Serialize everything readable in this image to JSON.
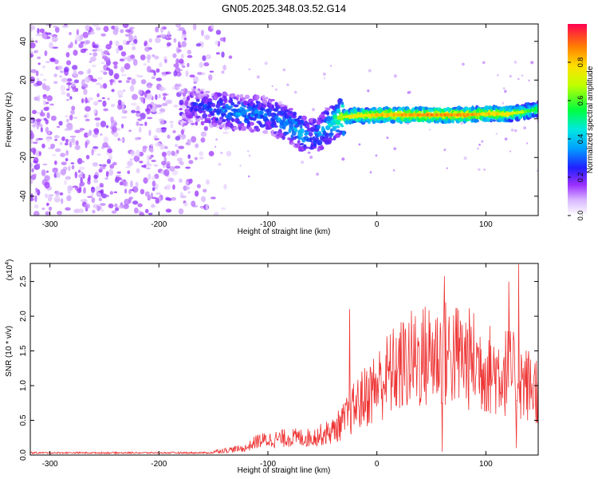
{
  "title": "GN05.2025.348.03.52.G14",
  "chart_data": [
    {
      "type": "heatmap",
      "xlabel": "Height of straight line (km)",
      "ylabel": "Frequency (Hz)",
      "xlim": [
        -318,
        148
      ],
      "ylim": [
        -50,
        49
      ],
      "x_ticks": [
        -300,
        -200,
        -100,
        0,
        100
      ],
      "y_ticks": [
        -40,
        -20,
        0,
        20,
        40
      ],
      "colorbar": {
        "label": "Normalized spectral amplitude",
        "range": [
          0,
          1
        ],
        "ticks": [
          "0.0",
          "0.2",
          "0.4",
          "0.6",
          "0.8"
        ],
        "tick_values": [
          0,
          0.2,
          0.4,
          0.6,
          0.8
        ]
      },
      "ridge": {
        "x": [
          -175,
          -150,
          -125,
          -100,
          -85,
          -70,
          -60,
          -50,
          -40,
          -35,
          -30,
          -20,
          0,
          20,
          40,
          60,
          80,
          100,
          120,
          140,
          148
        ],
        "frequency": [
          6,
          5,
          3,
          2,
          -2,
          -7,
          -10,
          -6,
          -2,
          1,
          1,
          1.5,
          2,
          2,
          2,
          2,
          2,
          2.5,
          2.5,
          4,
          5
        ],
        "amplitude": [
          0.2,
          0.3,
          0.35,
          0.3,
          0.35,
          0.4,
          0.3,
          0.35,
          0.45,
          0.6,
          0.7,
          0.75,
          0.8,
          0.85,
          0.85,
          0.85,
          0.85,
          0.8,
          0.75,
          0.6,
          0.55
        ]
      },
      "noise_region_x": [
        -318,
        -150
      ]
    },
    {
      "type": "line",
      "xlabel": "Height of straight line (km)",
      "ylabel": "SNR (10 * v/v)",
      "scale_label": "(x10",
      "scale_exp": "4",
      "scale_close": ")",
      "xlim": [
        -318,
        148
      ],
      "ylim": [
        0,
        27600
      ],
      "x_ticks": [
        -300,
        -200,
        -100,
        0,
        100
      ],
      "y_ticks": [
        0,
        5000,
        10000,
        15000,
        20000,
        25000
      ],
      "y_tick_labels": [
        "0.0",
        "0.5",
        "1.0",
        "1.5",
        "2.0",
        "2.5"
      ],
      "color": "#ee3333",
      "envelope": {
        "x": [
          -318,
          -200,
          -150,
          -120,
          -110,
          -80,
          -60,
          -50,
          -40,
          -30,
          -20,
          -10,
          0,
          10,
          20,
          30,
          40,
          50,
          60,
          70,
          80,
          90,
          100,
          110,
          120,
          130,
          140,
          148
        ],
        "y": [
          300,
          300,
          500,
          1000,
          2000,
          2500,
          2500,
          3000,
          3500,
          5000,
          7000,
          8500,
          10000,
          11500,
          12500,
          13500,
          14000,
          14500,
          14500,
          14500,
          14000,
          13500,
          12500,
          12000,
          12000,
          11000,
          10000,
          9500
        ]
      },
      "spikes": [
        {
          "x": -25,
          "y": 21000
        },
        {
          "x": 62,
          "y": 25800
        },
        {
          "x": 121,
          "y": 25000
        },
        {
          "x": 130,
          "y": 27500
        },
        {
          "x": 60,
          "y": 500
        },
        {
          "x": 128,
          "y": 1000
        }
      ]
    }
  ]
}
